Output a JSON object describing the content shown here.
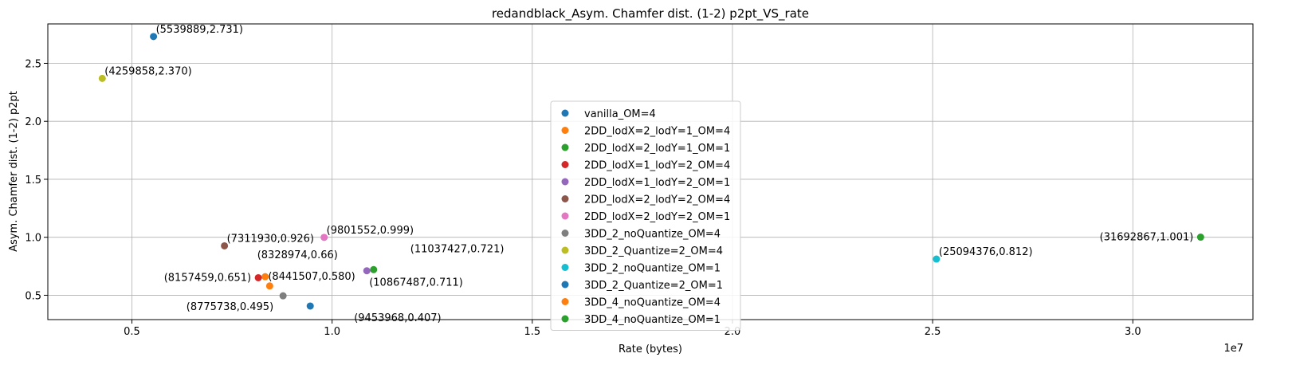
{
  "chart_data": {
    "type": "scatter",
    "title": "redandblack_Asym. Chamfer dist. (1-2) p2pt_VS_rate",
    "xlabel": "Rate (bytes)",
    "ylabel": "Asym. Chamfer dist. (1-2) p2pt",
    "x_offset_label": "1e7",
    "xlim": [
      2900000,
      33000000
    ],
    "ylim": [
      0.29,
      2.84
    ],
    "x_ticks": [
      5000000,
      10000000,
      15000000,
      20000000,
      25000000,
      30000000
    ],
    "x_tick_labels": [
      "0.5",
      "1.0",
      "1.5",
      "2.0",
      "2.5",
      "3.0"
    ],
    "y_ticks": [
      0.5,
      1.0,
      1.5,
      2.0,
      2.5
    ],
    "y_tick_labels": [
      "0.5",
      "1.0",
      "1.5",
      "2.0",
      "2.5"
    ],
    "grid": true,
    "legend_position": "lower-center",
    "series": [
      {
        "name": "vanilla_OM=4",
        "color": "#1f77b4",
        "x": 5539889,
        "y": 2.731,
        "label": "(5539889,2.731)",
        "label_anchor": "start"
      },
      {
        "name": "2DD_lodX=2_lodY=1_OM=4",
        "color": "#ff7f0e",
        "x": 8328974,
        "y": 0.66,
        "label": "(8328974,0.66)",
        "label_anchor": "above"
      },
      {
        "name": "2DD_lodX=2_lodY=1_OM=1",
        "color": "#2ca02c",
        "x": 11037427,
        "y": 0.721,
        "label": "(11037427,0.721)",
        "label_anchor": "above-right"
      },
      {
        "name": "2DD_lodX=1_lodY=2_OM=4",
        "color": "#d62728",
        "x": 8157459,
        "y": 0.651,
        "label": "(8157459,0.651)",
        "label_anchor": "left"
      },
      {
        "name": "2DD_lodX=1_lodY=2_OM=1",
        "color": "#9467bd",
        "x": 10867487,
        "y": 0.711,
        "label": "(10867487,0.711)",
        "label_anchor": "below-right"
      },
      {
        "name": "2DD_lodX=2_lodY=2_OM=4",
        "color": "#8c564b",
        "x": 7311930,
        "y": 0.926,
        "label": "(7311930,0.926)",
        "label_anchor": "start"
      },
      {
        "name": "2DD_lodX=2_lodY=2_OM=1",
        "color": "#e377c2",
        "x": 9801552,
        "y": 0.999,
        "label": "(9801552,0.999)",
        "label_anchor": "start"
      },
      {
        "name": "3DD_2_noQuantize_OM=4",
        "color": "#7f7f7f",
        "x": 8775738,
        "y": 0.495,
        "label": "(8775738,0.495)",
        "label_anchor": "left-below"
      },
      {
        "name": "3DD_2_Quantize=2_OM=4",
        "color": "#bcbd22",
        "x": 4259858,
        "y": 2.37,
        "label": "(4259858,2.370)",
        "label_anchor": "start"
      },
      {
        "name": "3DD_2_noQuantize_OM=1",
        "color": "#17becf",
        "x": 25094376,
        "y": 0.812,
        "label": "(25094376,0.812)",
        "label_anchor": "start"
      },
      {
        "name": "3DD_2_Quantize=2_OM=1",
        "color": "#1f77b4",
        "x": 9453968,
        "y": 0.407,
        "label": "(9453968,0.407)",
        "label_anchor": "below-right"
      },
      {
        "name": "3DD_4_noQuantize_OM=4",
        "color": "#ff7f0e",
        "x": 8441507,
        "y": 0.58,
        "label": "(8441507,0.580)",
        "label_anchor": "right-below"
      },
      {
        "name": "3DD_4_noQuantize_OM=1",
        "color": "#2ca02c",
        "x": 31692867,
        "y": 1.001,
        "label": "(31692867,1.001)",
        "label_anchor": "left"
      }
    ]
  }
}
